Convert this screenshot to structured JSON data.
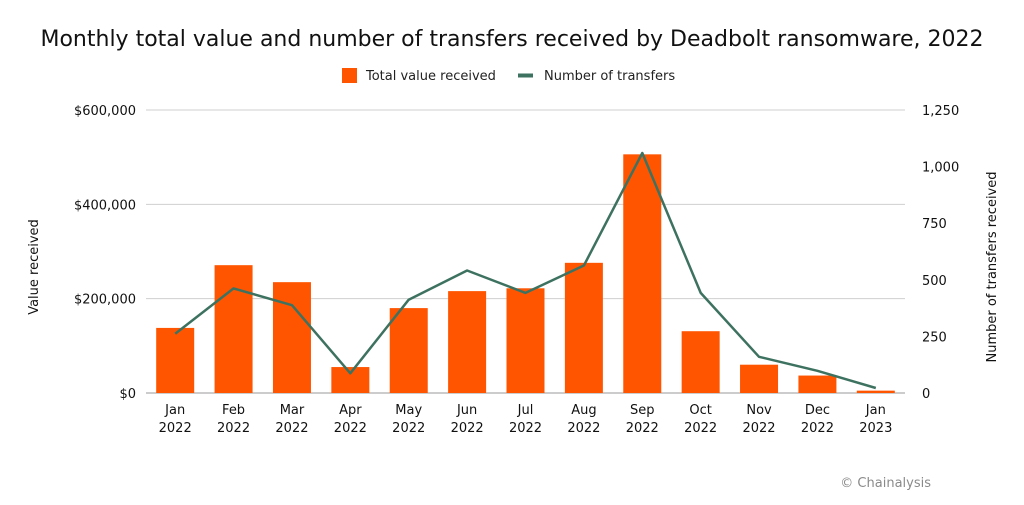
{
  "chart_data": {
    "type": "bar",
    "title": "Monthly total value and number of transfers received by Deadbolt ransomware, 2022",
    "categories": [
      [
        "Jan",
        "2022"
      ],
      [
        "Feb",
        "2022"
      ],
      [
        "Mar",
        "2022"
      ],
      [
        "Apr",
        "2022"
      ],
      [
        "May",
        "2022"
      ],
      [
        "Jun",
        "2022"
      ],
      [
        "Jul",
        "2022"
      ],
      [
        "Aug",
        "2022"
      ],
      [
        "Sep",
        "2022"
      ],
      [
        "Oct",
        "2022"
      ],
      [
        "Nov",
        "2022"
      ],
      [
        "Dec",
        "2022"
      ],
      [
        "Jan",
        "2023"
      ]
    ],
    "series": [
      {
        "name": "Total value received",
        "type": "bar",
        "axis": "left",
        "color": "#FF5500",
        "values": [
          138000,
          271000,
          235000,
          55000,
          180000,
          216000,
          222000,
          276000,
          506000,
          131000,
          60000,
          37000,
          5000
        ]
      },
      {
        "name": "Number of transfers",
        "type": "line",
        "axis": "right",
        "color": "#3E7260",
        "values": [
          262,
          462,
          388,
          87,
          412,
          541,
          442,
          563,
          1060,
          442,
          160,
          98,
          22
        ]
      }
    ],
    "yleft": {
      "label": "Value received",
      "ylim": [
        0,
        600000
      ],
      "ticks": [
        0,
        200000,
        400000,
        600000
      ],
      "tick_labels": [
        "$0",
        "$200,000",
        "$400,000",
        "$600,000"
      ]
    },
    "yright": {
      "label": "Number of transfers received",
      "ylim": [
        0,
        1250
      ],
      "ticks": [
        0,
        250,
        500,
        750,
        1000,
        1250
      ],
      "tick_labels": [
        "0",
        "250",
        "500",
        "750",
        "1,000",
        "1,250"
      ]
    },
    "legend_position": "top-center",
    "grid": true
  },
  "credit": "© Chainalysis"
}
